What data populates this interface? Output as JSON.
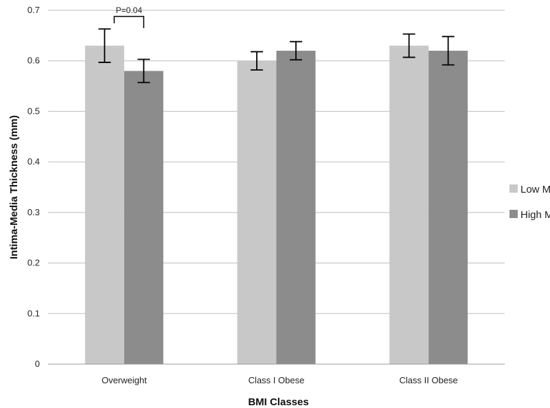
{
  "chart_data": {
    "type": "bar",
    "categories": [
      "Overweight",
      "Class I Obese",
      "Class II Obese"
    ],
    "series": [
      {
        "name": "Low MA",
        "values": [
          0.63,
          0.6,
          0.63
        ],
        "errors": [
          0.033,
          0.018,
          0.023
        ],
        "color": "#c8c8c8"
      },
      {
        "name": "High MA",
        "values": [
          0.58,
          0.62,
          0.62
        ],
        "errors": [
          0.023,
          0.018,
          0.028
        ],
        "color": "#8c8c8c"
      }
    ],
    "xlabel": "BMI Classes",
    "ylabel": "Intima-Media Thickness (mm)",
    "ylim": [
      0,
      0.7
    ],
    "yticks": [
      "0",
      "0.1",
      "0.2",
      "0.3",
      "0.4",
      "0.5",
      "0.6",
      "0.7"
    ],
    "grid": true,
    "legend_position": "right",
    "annotation": {
      "text": "P=0.04",
      "category_index": 0
    }
  }
}
